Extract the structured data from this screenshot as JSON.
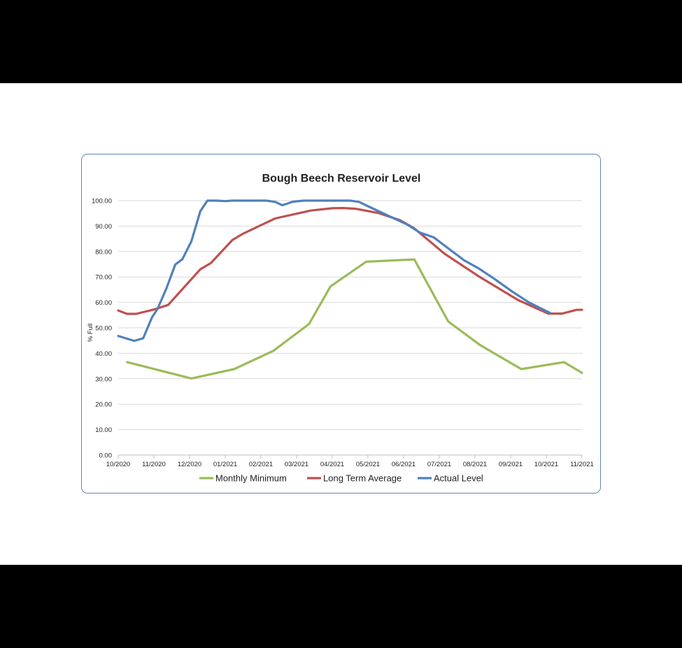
{
  "chart_data": {
    "type": "line",
    "title": "Bough Beech Reservoir Level",
    "ylabel": "% Full",
    "xlabel": "",
    "ylim": [
      0,
      100
    ],
    "ytick_labels": [
      "0.00",
      "10.00",
      "20.00",
      "30.00",
      "40.00",
      "50.00",
      "60.00",
      "70.00",
      "80.00",
      "90.00",
      "100.00"
    ],
    "xtick_labels": [
      "10/2020",
      "11/2020",
      "12/2020",
      "01/2021",
      "02/2021",
      "03/2021",
      "04/2021",
      "05/2021",
      "06/2021",
      "07/2021",
      "08/2021",
      "09/2021",
      "10/2021",
      "11/2021"
    ],
    "xrange_months": [
      0,
      13
    ],
    "grid": "horizontal",
    "legend_position": "bottom",
    "series": [
      {
        "name": "Monthly Minimum",
        "color": "#9bbb59",
        "points": [
          [
            0.25,
            36.5
          ],
          [
            2.05,
            30.1
          ],
          [
            3.25,
            33.8
          ],
          [
            4.35,
            41.0
          ],
          [
            5.35,
            51.5
          ],
          [
            5.95,
            66.3
          ],
          [
            6.95,
            76.0
          ],
          [
            8.3,
            76.9
          ],
          [
            9.25,
            52.5
          ],
          [
            10.15,
            43.2
          ],
          [
            11.3,
            33.8
          ],
          [
            12.5,
            36.5
          ],
          [
            13.0,
            32.3
          ]
        ]
      },
      {
        "name": "Long Term Average",
        "color": "#c0504d",
        "points": [
          [
            0,
            56.8
          ],
          [
            0.25,
            55.5
          ],
          [
            0.5,
            55.5
          ],
          [
            1.0,
            57.2
          ],
          [
            1.4,
            59.0
          ],
          [
            2.3,
            73.0
          ],
          [
            2.6,
            75.5
          ],
          [
            3.2,
            84.5
          ],
          [
            3.5,
            87.0
          ],
          [
            4.4,
            93.0
          ],
          [
            5.4,
            96.1
          ],
          [
            6.0,
            97.0
          ],
          [
            6.3,
            97.1
          ],
          [
            6.65,
            96.8
          ],
          [
            7.3,
            95.1
          ],
          [
            7.9,
            92.3
          ],
          [
            8.3,
            89.1
          ],
          [
            9.15,
            79.1
          ],
          [
            10.1,
            70.3
          ],
          [
            11.2,
            61.0
          ],
          [
            12.05,
            55.6
          ],
          [
            12.45,
            55.6
          ],
          [
            12.85,
            57.1
          ],
          [
            13.0,
            57.1
          ]
        ]
      },
      {
        "name": "Actual Level",
        "color": "#4f81bd",
        "points": [
          [
            0,
            46.8
          ],
          [
            0.45,
            44.9
          ],
          [
            0.7,
            45.9
          ],
          [
            0.95,
            54.2
          ],
          [
            1.1,
            57.4
          ],
          [
            1.35,
            65.5
          ],
          [
            1.6,
            74.9
          ],
          [
            1.8,
            77.0
          ],
          [
            2.05,
            84.0
          ],
          [
            2.3,
            95.8
          ],
          [
            2.5,
            100.0
          ],
          [
            2.75,
            100.0
          ],
          [
            3.0,
            99.8
          ],
          [
            3.2,
            100.0
          ],
          [
            3.6,
            100.0
          ],
          [
            4.15,
            100.0
          ],
          [
            4.4,
            99.5
          ],
          [
            4.6,
            98.2
          ],
          [
            4.9,
            99.6
          ],
          [
            5.2,
            100.0
          ],
          [
            6.5,
            100.0
          ],
          [
            6.75,
            99.5
          ],
          [
            7.0,
            97.8
          ],
          [
            8.1,
            90.6
          ],
          [
            8.45,
            87.5
          ],
          [
            8.85,
            85.5
          ],
          [
            9.15,
            82.3
          ],
          [
            9.7,
            76.5
          ],
          [
            10.1,
            73.4
          ],
          [
            10.55,
            69.2
          ],
          [
            11.05,
            64.2
          ],
          [
            11.5,
            60.1
          ],
          [
            11.85,
            57.6
          ],
          [
            12.1,
            55.9
          ]
        ]
      }
    ]
  }
}
